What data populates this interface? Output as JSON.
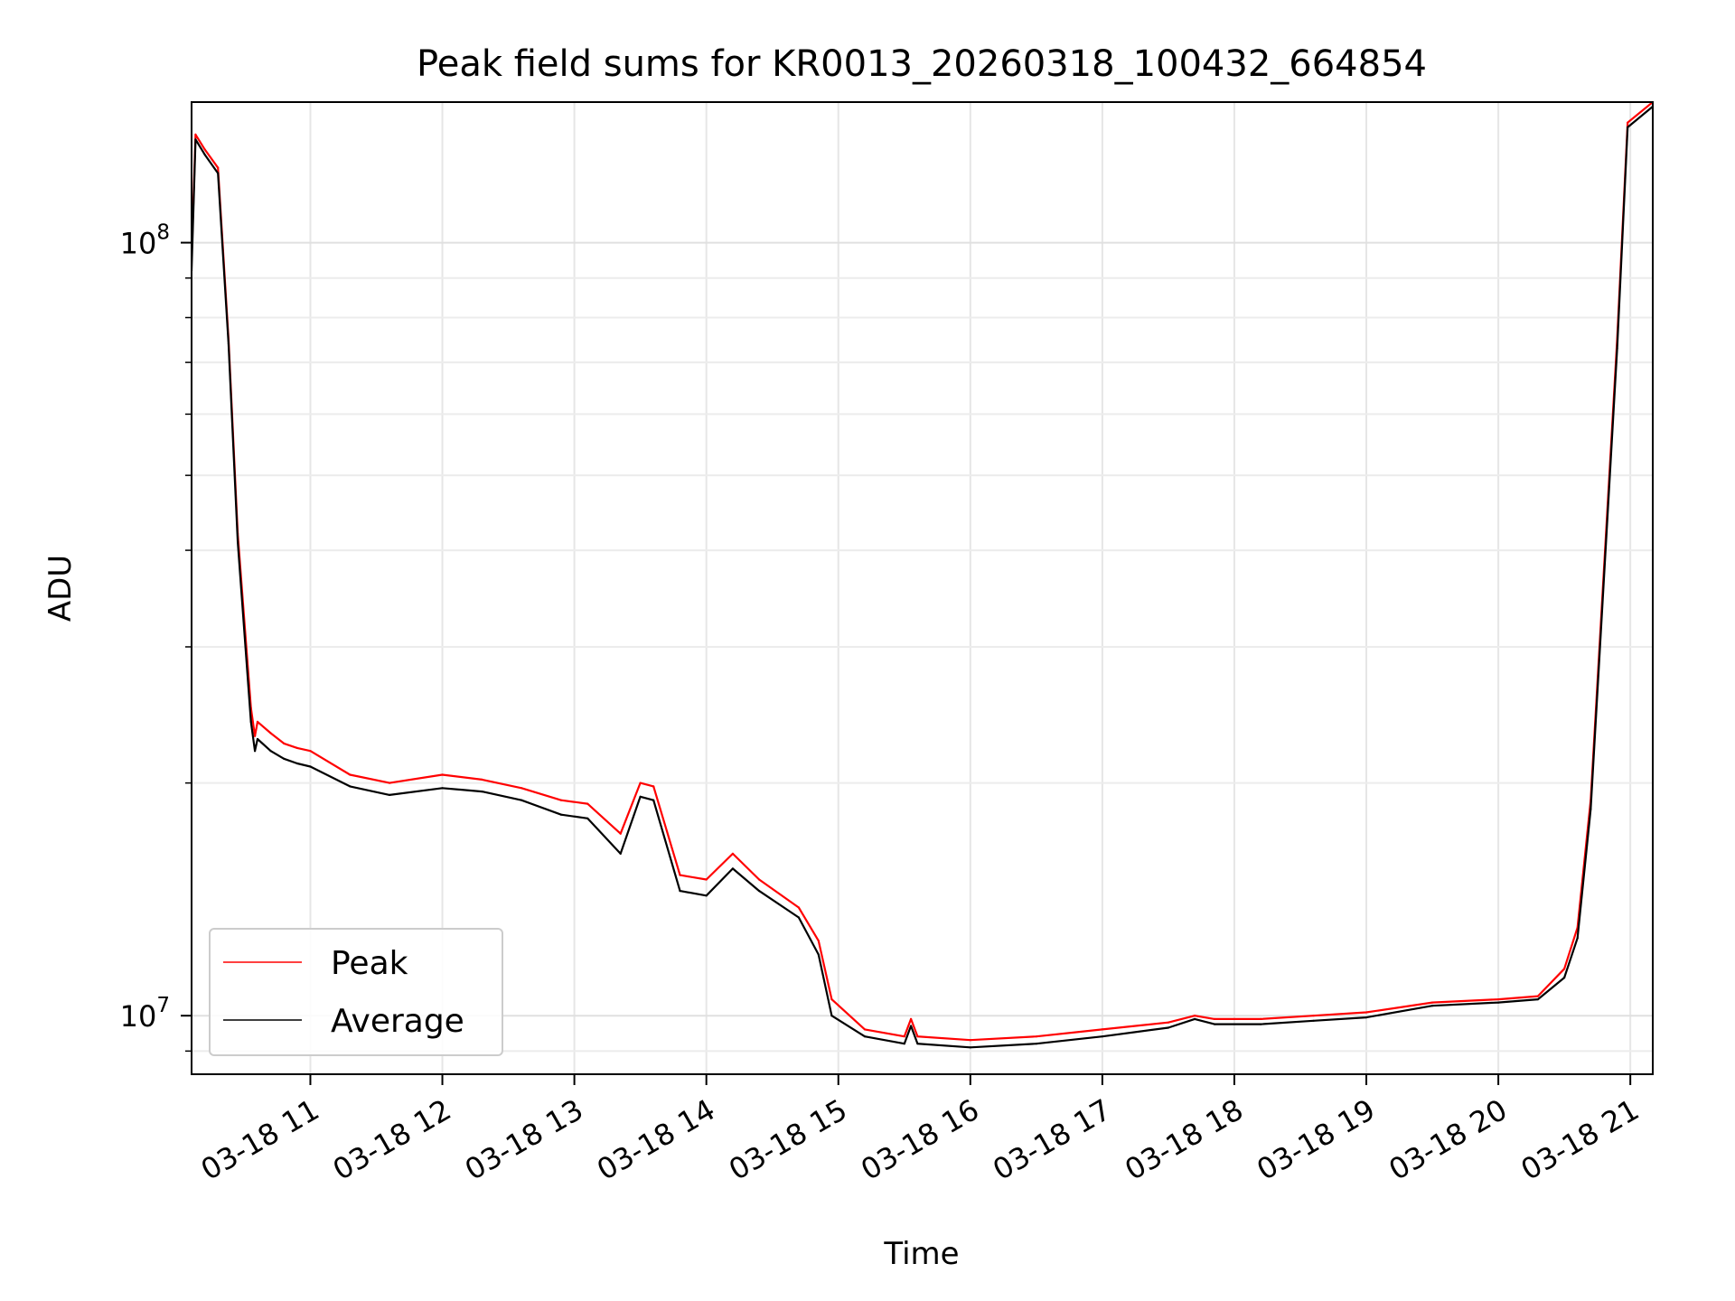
{
  "chart_data": {
    "type": "line",
    "title": "Peak field sums for KR0013_20260318_100432_664854",
    "xlabel": "Time",
    "ylabel": "ADU",
    "yscale": "log",
    "xlim": [
      10.1,
      21.17
    ],
    "ylim": [
      8400000.0,
      152000000.0
    ],
    "grid": true,
    "legend_position": "lower-left",
    "x_ticks": [
      {
        "value": 11,
        "label": "03-18 11"
      },
      {
        "value": 12,
        "label": "03-18 12"
      },
      {
        "value": 13,
        "label": "03-18 13"
      },
      {
        "value": 14,
        "label": "03-18 14"
      },
      {
        "value": 15,
        "label": "03-18 15"
      },
      {
        "value": 16,
        "label": "03-18 16"
      },
      {
        "value": 17,
        "label": "03-18 17"
      },
      {
        "value": 18,
        "label": "03-18 18"
      },
      {
        "value": 19,
        "label": "03-18 19"
      },
      {
        "value": 20,
        "label": "03-18 20"
      },
      {
        "value": 21,
        "label": "03-18 21"
      }
    ],
    "y_ticks": [
      {
        "value": 10000000,
        "base": "10",
        "exp": "7"
      },
      {
        "value": 100000000,
        "base": "10",
        "exp": "8"
      }
    ],
    "series": [
      {
        "name": "Peak",
        "color": "#ff0000",
        "x": [
          10.1,
          10.13,
          10.2,
          10.3,
          10.38,
          10.45,
          10.55,
          10.58,
          10.6,
          10.7,
          10.8,
          10.9,
          11.0,
          11.3,
          11.6,
          12.0,
          12.3,
          12.6,
          12.9,
          13.1,
          13.35,
          13.5,
          13.6,
          13.8,
          14.0,
          14.2,
          14.4,
          14.7,
          14.85,
          14.95,
          15.2,
          15.5,
          15.55,
          15.6,
          16.0,
          16.5,
          17.0,
          17.5,
          17.7,
          17.85,
          18.2,
          18.6,
          19.0,
          19.5,
          20.0,
          20.3,
          20.5,
          20.6,
          20.7,
          20.9,
          20.98,
          21.17
        ],
        "values": [
          95000000.0,
          138000000.0,
          132000000.0,
          125000000.0,
          75000000.0,
          42000000.0,
          25000000.0,
          23000000.0,
          24000000.0,
          23200000.0,
          22500000.0,
          22200000.0,
          22000000.0,
          20500000.0,
          20000000.0,
          20500000.0,
          20200000.0,
          19700000.0,
          19000000.0,
          18800000.0,
          17200000.0,
          20000000.0,
          19800000.0,
          15200000.0,
          15000000.0,
          16200000.0,
          15000000.0,
          13800000.0,
          12500000.0,
          10500000.0,
          9600000.0,
          9400000.0,
          9900000.0,
          9400000.0,
          9300000.0,
          9400000.0,
          9600000.0,
          9800000.0,
          10000000.0,
          9900000.0,
          9900000.0,
          10000000.0,
          10100000.0,
          10400000.0,
          10500000.0,
          10600000.0,
          11500000.0,
          13000000.0,
          19000000.0,
          75000000.0,
          143000000.0,
          152000000.0
        ]
      },
      {
        "name": "Average",
        "color": "#000000",
        "x": [
          10.1,
          10.13,
          10.2,
          10.3,
          10.38,
          10.45,
          10.55,
          10.58,
          10.6,
          10.7,
          10.8,
          10.9,
          11.0,
          11.3,
          11.6,
          12.0,
          12.3,
          12.6,
          12.9,
          13.1,
          13.35,
          13.5,
          13.6,
          13.8,
          14.0,
          14.2,
          14.4,
          14.7,
          14.85,
          14.95,
          15.2,
          15.5,
          15.55,
          15.6,
          16.0,
          16.5,
          17.0,
          17.5,
          17.7,
          17.85,
          18.2,
          18.6,
          19.0,
          19.5,
          20.0,
          20.3,
          20.5,
          20.6,
          20.7,
          20.9,
          20.98,
          21.17
        ],
        "values": [
          92000000.0,
          136000000.0,
          130000000.0,
          123000000.0,
          74000000.0,
          41000000.0,
          24000000.0,
          22000000.0,
          22800000.0,
          22000000.0,
          21500000.0,
          21200000.0,
          21000000.0,
          19800000.0,
          19300000.0,
          19700000.0,
          19500000.0,
          19000000.0,
          18200000.0,
          18000000.0,
          16200000.0,
          19200000.0,
          19000000.0,
          14500000.0,
          14300000.0,
          15500000.0,
          14500000.0,
          13400000.0,
          12000000.0,
          10000000.0,
          9400000.0,
          9200000.0,
          9700000.0,
          9200000.0,
          9100000.0,
          9200000.0,
          9400000.0,
          9650000.0,
          9900000.0,
          9750000.0,
          9750000.0,
          9850000.0,
          9950000.0,
          10300000.0,
          10400000.0,
          10500000.0,
          11200000.0,
          12600000.0,
          18500000.0,
          73000000.0,
          141000000.0,
          150000000.0
        ]
      }
    ]
  }
}
